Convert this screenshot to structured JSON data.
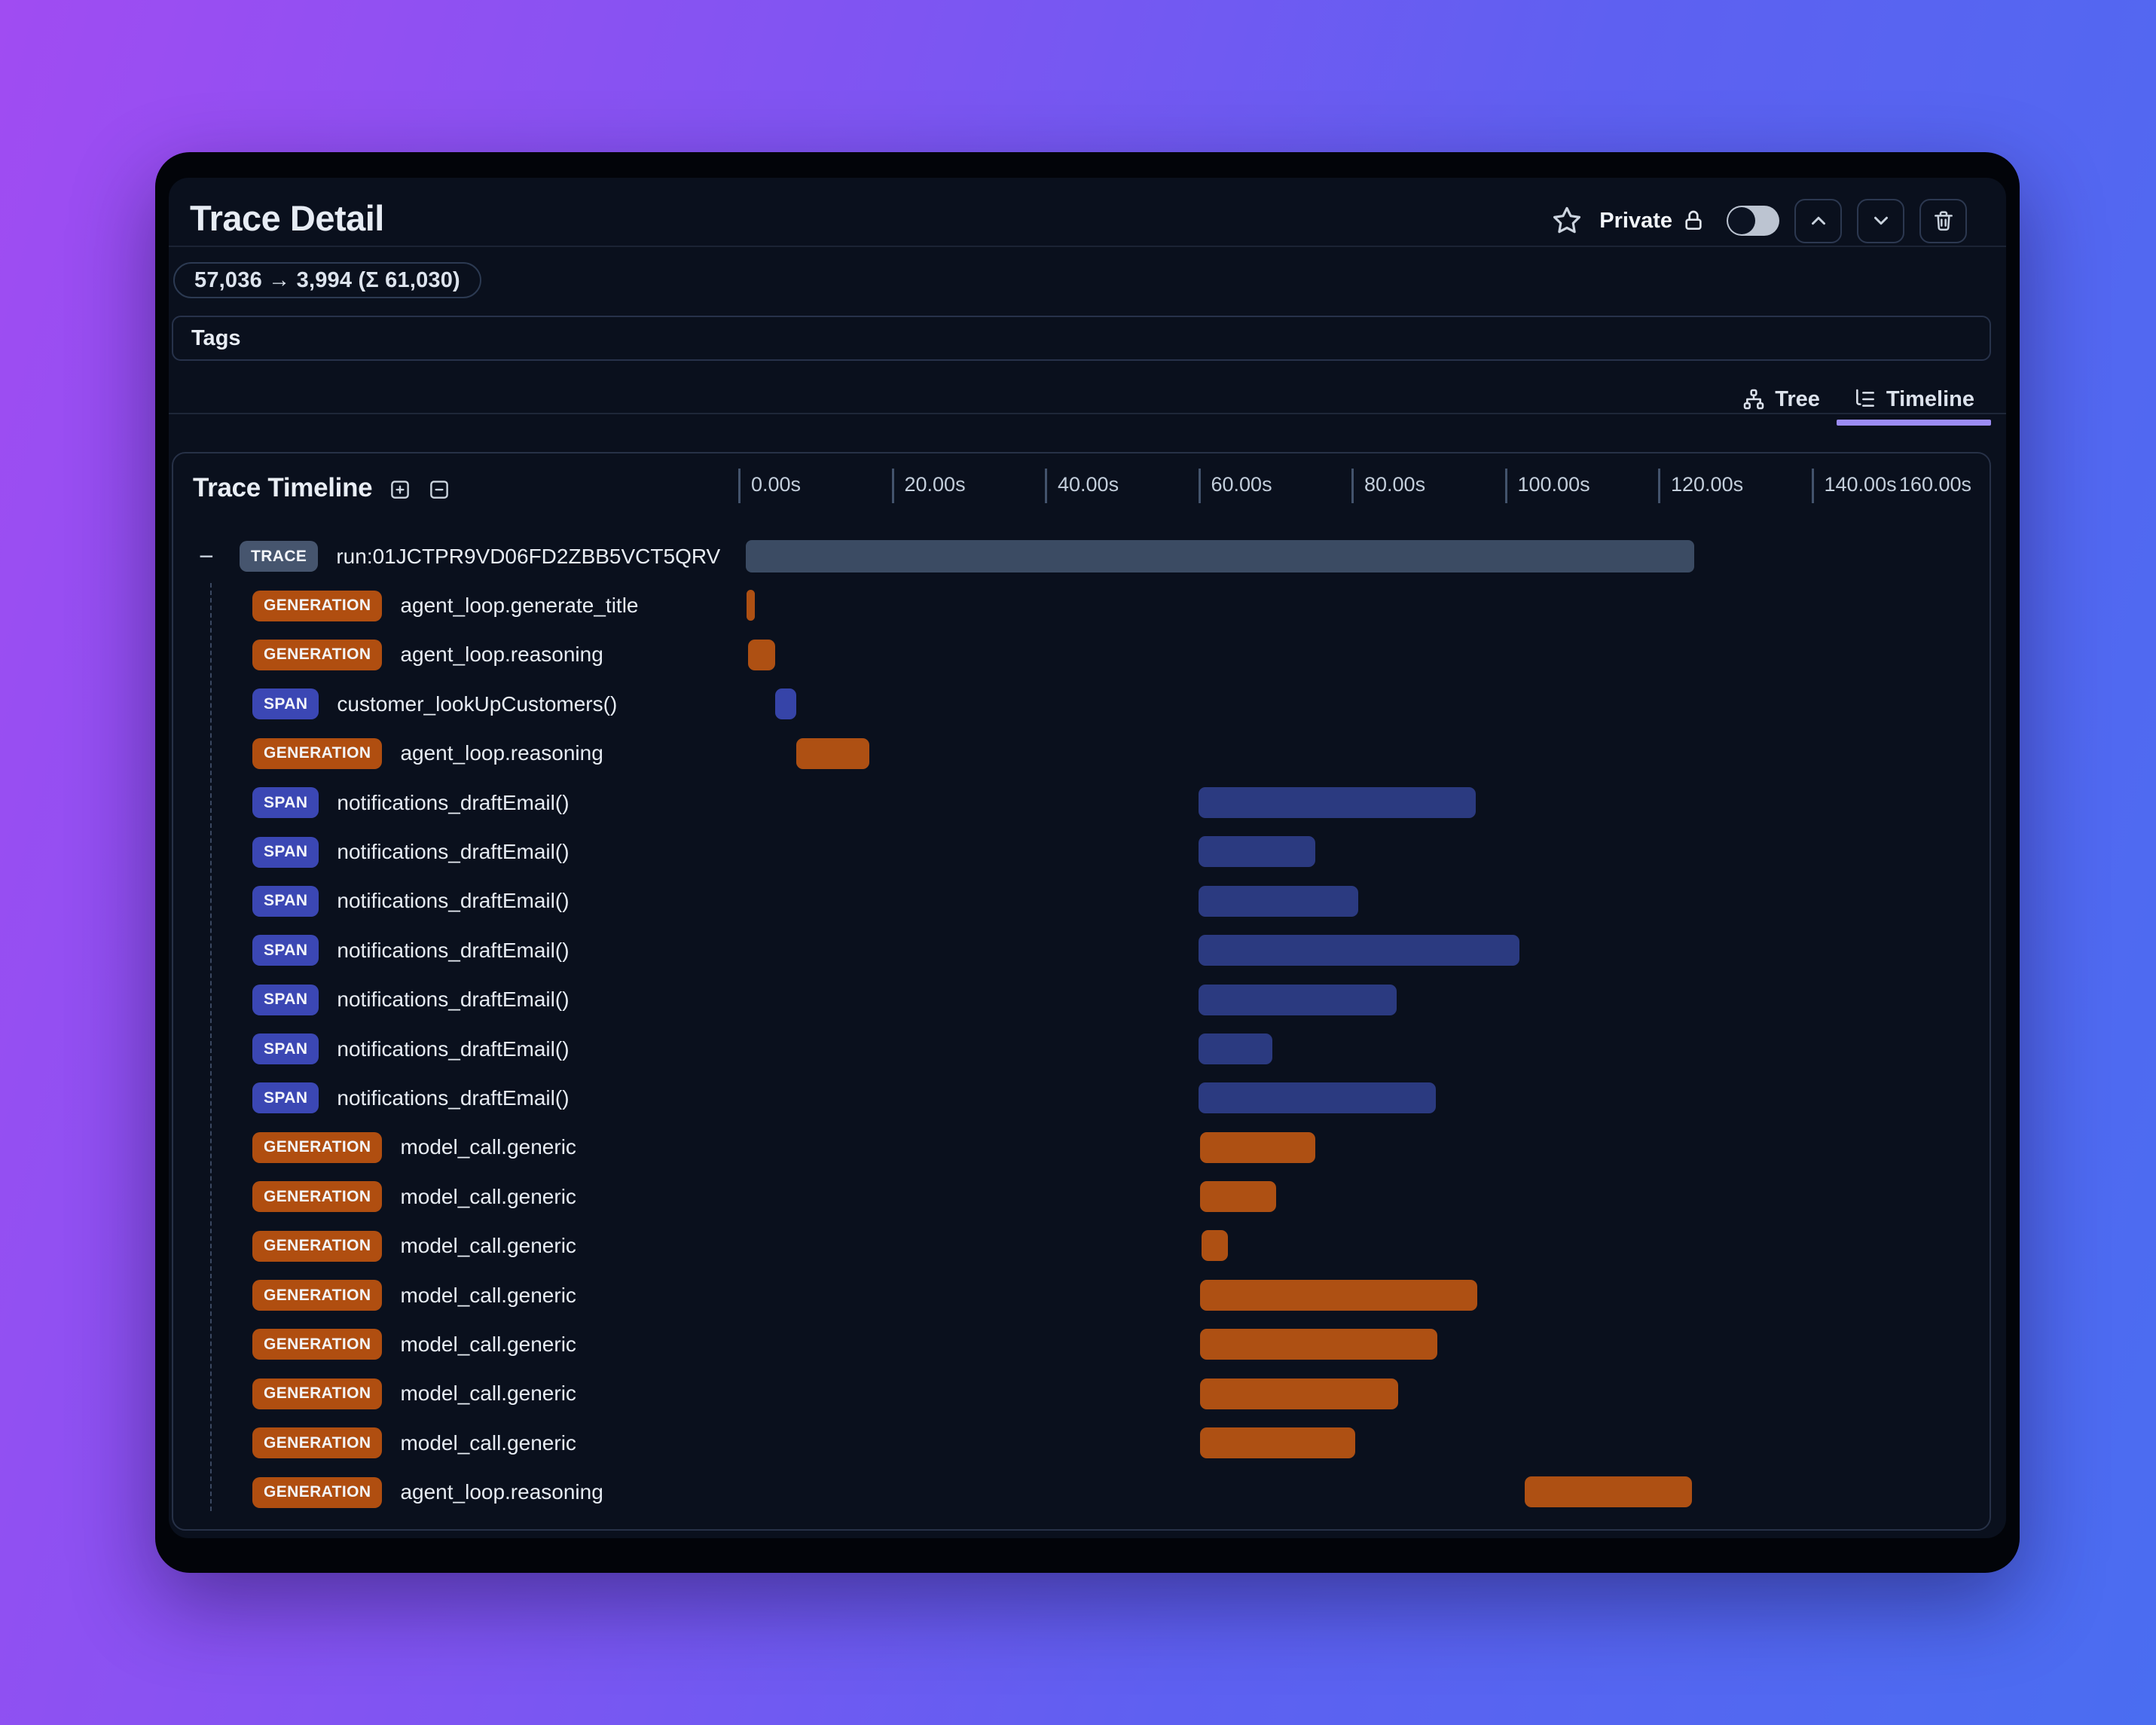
{
  "header": {
    "title": "Trace Detail",
    "privacy_label": "Private",
    "token_summary": "57,036 → 3,994 (Σ 61,030)",
    "tags_label": "Tags"
  },
  "tabs": [
    {
      "label": "Tree",
      "active": false
    },
    {
      "label": "Timeline",
      "active": true
    }
  ],
  "timeline": {
    "title": "Trace Timeline",
    "axis": {
      "ticks": [
        {
          "seconds": 0,
          "label": "0.00s"
        },
        {
          "seconds": 20,
          "label": "20.00s"
        },
        {
          "seconds": 40,
          "label": "40.00s"
        },
        {
          "seconds": 60,
          "label": "60.00s"
        },
        {
          "seconds": 80,
          "label": "80.00s"
        },
        {
          "seconds": 100,
          "label": "100.00s"
        },
        {
          "seconds": 120,
          "label": "120.00s"
        },
        {
          "seconds": 140,
          "label": "140.00s"
        }
      ],
      "end_label": "160.00s",
      "max_seconds": 160
    },
    "rows": [
      {
        "type": "TRACE",
        "name": "run:01JCTPR9VD06FD2ZBB5VCT5QRV",
        "start": 1.0,
        "end": 124.7,
        "bar_style": "trace",
        "collapsible": true
      },
      {
        "type": "GENERATION",
        "name": "agent_loop.generate_title",
        "start": 1.1,
        "end": 2.2,
        "bar_style": "generation"
      },
      {
        "type": "GENERATION",
        "name": "agent_loop.reasoning",
        "start": 1.3,
        "end": 4.8,
        "bar_style": "generation"
      },
      {
        "type": "SPAN",
        "name": "customer_lookUpCustomers()",
        "start": 4.8,
        "end": 7.6,
        "bar_style": "span_bright"
      },
      {
        "type": "GENERATION",
        "name": "agent_loop.reasoning",
        "start": 7.6,
        "end": 17.1,
        "bar_style": "generation"
      },
      {
        "type": "SPAN",
        "name": "notifications_draftEmail()",
        "start": 60.0,
        "end": 96.2,
        "bar_style": "span"
      },
      {
        "type": "SPAN",
        "name": "notifications_draftEmail()",
        "start": 60.0,
        "end": 75.3,
        "bar_style": "span"
      },
      {
        "type": "SPAN",
        "name": "notifications_draftEmail()",
        "start": 60.0,
        "end": 80.9,
        "bar_style": "span"
      },
      {
        "type": "SPAN",
        "name": "notifications_draftEmail()",
        "start": 60.0,
        "end": 101.9,
        "bar_style": "span"
      },
      {
        "type": "SPAN",
        "name": "notifications_draftEmail()",
        "start": 60.0,
        "end": 85.9,
        "bar_style": "span"
      },
      {
        "type": "SPAN",
        "name": "notifications_draftEmail()",
        "start": 60.0,
        "end": 69.7,
        "bar_style": "span"
      },
      {
        "type": "SPAN",
        "name": "notifications_draftEmail()",
        "start": 60.0,
        "end": 91.0,
        "bar_style": "span"
      },
      {
        "type": "GENERATION",
        "name": "model_call.generic",
        "start": 60.2,
        "end": 75.3,
        "bar_style": "generation"
      },
      {
        "type": "GENERATION",
        "name": "model_call.generic",
        "start": 60.2,
        "end": 70.2,
        "bar_style": "generation"
      },
      {
        "type": "GENERATION",
        "name": "model_call.generic",
        "start": 60.4,
        "end": 63.9,
        "bar_style": "generation"
      },
      {
        "type": "GENERATION",
        "name": "model_call.generic",
        "start": 60.2,
        "end": 96.4,
        "bar_style": "generation"
      },
      {
        "type": "GENERATION",
        "name": "model_call.generic",
        "start": 60.2,
        "end": 91.2,
        "bar_style": "generation"
      },
      {
        "type": "GENERATION",
        "name": "model_call.generic",
        "start": 60.2,
        "end": 86.1,
        "bar_style": "generation"
      },
      {
        "type": "GENERATION",
        "name": "model_call.generic",
        "start": 60.2,
        "end": 80.5,
        "bar_style": "generation"
      },
      {
        "type": "GENERATION",
        "name": "agent_loop.reasoning",
        "start": 102.6,
        "end": 124.4,
        "bar_style": "generation"
      }
    ]
  },
  "colors": {
    "badges": {
      "TRACE": "#46556e",
      "GENERATION": "#b04e10",
      "SPAN": "#3b47b4"
    },
    "bars": {
      "trace": "#3b4b63",
      "generation": "#ae5013",
      "span": "#2b3a80",
      "span_bright": "#3644a8"
    },
    "accent_underline": "#9c8cf4",
    "background_gradient": [
      "#a04cf2",
      "#4a6df1"
    ]
  }
}
